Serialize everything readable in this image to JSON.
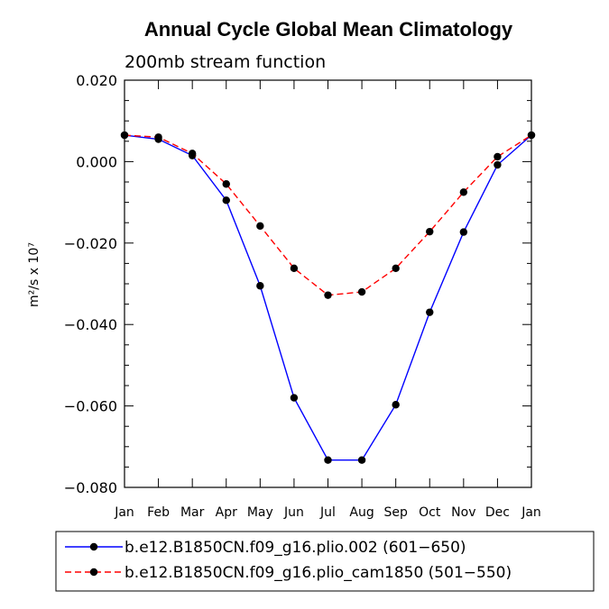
{
  "chart_data": {
    "type": "line",
    "title": "Annual Cycle Global Mean Climatology",
    "subtitle": "200mb stream function",
    "ylabel": "m²/s x 10⁷",
    "xlabel": "",
    "categories": [
      "Jan",
      "Feb",
      "Mar",
      "Apr",
      "May",
      "Jun",
      "Jul",
      "Aug",
      "Sep",
      "Oct",
      "Nov",
      "Dec",
      "Jan"
    ],
    "ylim": [
      -0.08,
      0.02
    ],
    "yticks": [
      0.02,
      0.0,
      -0.02,
      -0.04,
      -0.06,
      -0.08
    ],
    "ytick_labels": [
      "0.020",
      "0.000",
      "−0.020",
      "−0.040",
      "−0.060",
      "−0.080"
    ],
    "grid": false,
    "legend_position": "bottom",
    "series": [
      {
        "name": "b.e12.B1850CN.f09_g16.plio.002 (601−650)",
        "color": "#0000ff",
        "dash": "solid",
        "values": [
          0.0065,
          0.0055,
          0.0015,
          -0.0095,
          -0.0305,
          -0.058,
          -0.0733,
          -0.0733,
          -0.0597,
          -0.037,
          -0.0173,
          -0.0008,
          0.0065
        ]
      },
      {
        "name": "b.e12.B1850CN.f09_g16.plio_cam1850 (501−550)",
        "color": "#ff0000",
        "dash": "dashed",
        "values": [
          0.0065,
          0.006,
          0.002,
          -0.0055,
          -0.0158,
          -0.0262,
          -0.0328,
          -0.032,
          -0.0262,
          -0.0172,
          -0.0075,
          0.0012,
          0.0065
        ]
      }
    ]
  }
}
